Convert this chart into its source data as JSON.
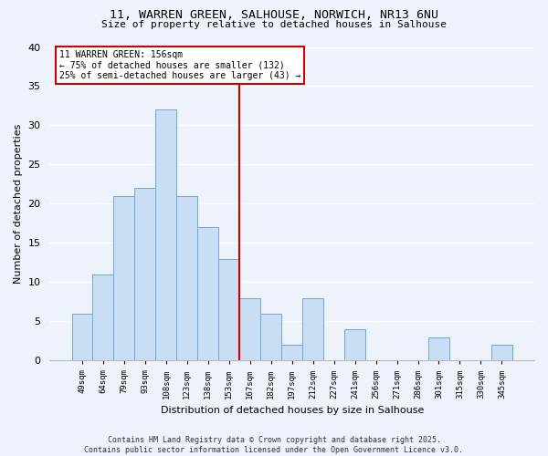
{
  "title": "11, WARREN GREEN, SALHOUSE, NORWICH, NR13 6NU",
  "subtitle": "Size of property relative to detached houses in Salhouse",
  "xlabel": "Distribution of detached houses by size in Salhouse",
  "ylabel": "Number of detached properties",
  "bin_labels": [
    "49sqm",
    "64sqm",
    "79sqm",
    "93sqm",
    "108sqm",
    "123sqm",
    "138sqm",
    "153sqm",
    "167sqm",
    "182sqm",
    "197sqm",
    "212sqm",
    "227sqm",
    "241sqm",
    "256sqm",
    "271sqm",
    "286sqm",
    "301sqm",
    "315sqm",
    "330sqm",
    "345sqm"
  ],
  "bar_heights": [
    6,
    11,
    21,
    22,
    32,
    21,
    17,
    13,
    8,
    6,
    2,
    8,
    0,
    4,
    0,
    0,
    0,
    3,
    0,
    0,
    2
  ],
  "bar_color": "#c9ddf5",
  "bar_edge_color": "#6aaad4",
  "vline_x": 7.5,
  "vline_color": "#cc0000",
  "annotation_title": "11 WARREN GREEN: 156sqm",
  "annotation_line1": "← 75% of detached houses are smaller (132)",
  "annotation_line2": "25% of semi-detached houses are larger (43) →",
  "annotation_box_color": "#ffffff",
  "annotation_box_edge": "#cc0000",
  "ylim": [
    0,
    40
  ],
  "yticks": [
    0,
    5,
    10,
    15,
    20,
    25,
    30,
    35,
    40
  ],
  "footer_line1": "Contains HM Land Registry data © Crown copyright and database right 2025.",
  "footer_line2": "Contains public sector information licensed under the Open Government Licence v3.0.",
  "bg_color": "#eef3fb",
  "grid_color": "#ffffff"
}
